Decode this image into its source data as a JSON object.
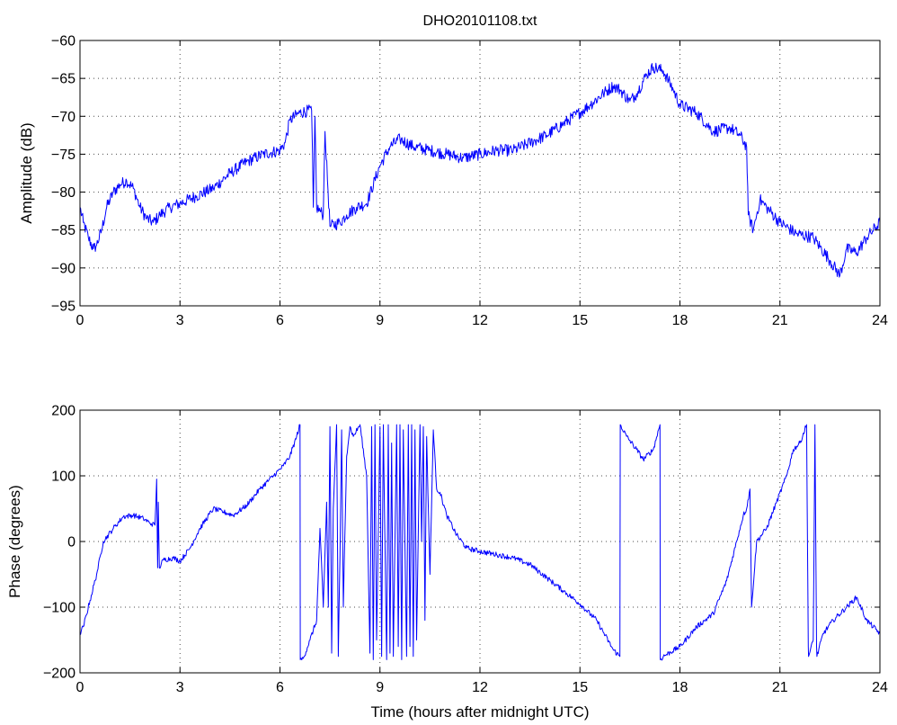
{
  "figure": {
    "title": "DHO20101108.txt"
  },
  "chart_data": [
    {
      "type": "line",
      "title": "DHO20101108.txt",
      "xlabel": "",
      "ylabel": "Amplitude (dB)",
      "xlim": [
        0,
        24
      ],
      "ylim": [
        -95,
        -60
      ],
      "xticks": [
        "0",
        "3",
        "6",
        "9",
        "12",
        "15",
        "18",
        "21",
        "24"
      ],
      "yticks": [
        "-95",
        "-90",
        "-85",
        "-80",
        "-75",
        "-70",
        "-65",
        "-60"
      ],
      "grid": true,
      "color": "#0000ff",
      "noise": 0.8,
      "series": [
        {
          "x": [
            0,
            0.1,
            0.25,
            0.4,
            0.5,
            0.65,
            0.8,
            1.0,
            1.2,
            1.4,
            1.6,
            1.8,
            2.0,
            2.2,
            2.4,
            2.7,
            3.0,
            3.5,
            4.0,
            4.5,
            5.0,
            5.5,
            6.0,
            6.15,
            6.3,
            6.6,
            6.95,
            7.0,
            7.05,
            7.1,
            7.2,
            7.3,
            7.35,
            7.5,
            7.8,
            8.0,
            8.3,
            8.6,
            9.0,
            9.3,
            9.6,
            10.0,
            10.5,
            11.0,
            11.5,
            12.0,
            12.5,
            13.0,
            13.5,
            14.0,
            14.5,
            15.0,
            15.3,
            15.7,
            16.0,
            16.2,
            16.5,
            16.7,
            17.0,
            17.2,
            17.5,
            17.8,
            18.0,
            18.5,
            19.0,
            19.5,
            19.8,
            20.0,
            20.05,
            20.2,
            20.4,
            20.6,
            21.0,
            21.5,
            22.0,
            22.5,
            22.8,
            23.0,
            23.3,
            23.6,
            24.0
          ],
          "values": [
            -82,
            -84,
            -86,
            -87.5,
            -87,
            -85,
            -82,
            -80,
            -79,
            -78.5,
            -79.5,
            -82,
            -83.5,
            -84,
            -83,
            -82,
            -81.5,
            -80.5,
            -79.5,
            -77.5,
            -76,
            -75,
            -74.5,
            -73.5,
            -70.5,
            -69.5,
            -69.2,
            -82,
            -70,
            -82,
            -82.5,
            -83,
            -72,
            -84.5,
            -84,
            -83,
            -82,
            -81.5,
            -76.5,
            -74,
            -73,
            -74,
            -74.5,
            -75,
            -75.5,
            -75,
            -74.5,
            -74.5,
            -73.5,
            -72.5,
            -71,
            -69.5,
            -68.5,
            -67,
            -66,
            -66.5,
            -68,
            -67,
            -64.5,
            -63.5,
            -64,
            -66.5,
            -68.5,
            -69.5,
            -72,
            -71.5,
            -72.5,
            -74,
            -83,
            -85,
            -81,
            -82,
            -84,
            -85.5,
            -86,
            -89,
            -91,
            -87.5,
            -88,
            -86,
            -84
          ]
        }
      ]
    },
    {
      "type": "line",
      "title": "",
      "xlabel": "Time (hours after midnight UTC)",
      "ylabel": "Phase (degrees)",
      "xlim": [
        0,
        24
      ],
      "ylim": [
        -200,
        200
      ],
      "xticks": [
        "0",
        "3",
        "6",
        "9",
        "12",
        "15",
        "18",
        "21",
        "24"
      ],
      "yticks": [
        "-200",
        "-100",
        "0",
        "100",
        "200"
      ],
      "grid": true,
      "color": "#0000ff",
      "noise": 4,
      "series": [
        {
          "x": [
            0,
            0.1,
            0.3,
            0.5,
            0.7,
            1.0,
            1.3,
            1.6,
            1.9,
            2.1,
            2.25,
            2.3,
            2.33,
            2.35,
            2.38,
            2.5,
            2.8,
            3.0,
            3.3,
            3.6,
            4.0,
            4.3,
            4.6,
            5.0,
            5.4,
            5.8,
            6.1,
            6.3,
            6.5,
            6.6,
            6.61,
            6.7,
            6.9,
            7.1,
            7.2,
            7.3,
            7.4,
            7.45,
            7.5,
            7.55,
            7.6,
            7.7,
            7.75,
            7.8,
            7.85,
            7.9,
            8.0,
            8.1,
            8.2,
            8.4,
            8.6,
            8.7,
            8.75,
            8.8,
            8.85,
            8.9,
            9.0,
            9.05,
            9.1,
            9.2,
            9.25,
            9.3,
            9.35,
            9.4,
            9.5,
            9.55,
            9.6,
            9.65,
            9.7,
            9.8,
            9.85,
            9.9,
            9.95,
            10.0,
            10.05,
            10.1,
            10.2,
            10.25,
            10.3,
            10.35,
            10.4,
            10.5,
            10.6,
            10.7,
            10.8,
            11.0,
            11.3,
            11.6,
            12.0,
            12.5,
            13.0,
            13.5,
            14.0,
            14.5,
            15.0,
            15.5,
            16.0,
            16.2,
            16.21,
            16.4,
            16.7,
            16.9,
            17.2,
            17.4,
            17.41,
            17.5,
            18.0,
            18.5,
            19.0,
            19.4,
            19.7,
            19.9,
            20.0,
            20.1,
            20.15,
            20.3,
            20.6,
            20.9,
            21.2,
            21.4,
            21.6,
            21.8,
            21.85,
            21.86,
            22.0,
            22.05,
            22.1,
            22.11,
            22.3,
            22.6,
            23.0,
            23.3,
            23.6,
            24.0
          ],
          "values": [
            -140,
            -130,
            -90,
            -50,
            0,
            20,
            38,
            40,
            35,
            28,
            25,
            95,
            -40,
            60,
            -40,
            -28,
            -25,
            -30,
            -10,
            20,
            50,
            45,
            40,
            55,
            80,
            100,
            115,
            130,
            160,
            178,
            -180,
            -178,
            -150,
            -120,
            20,
            -100,
            60,
            -100,
            175,
            -170,
            50,
            178,
            -175,
            -20,
            170,
            -100,
            130,
            175,
            160,
            178,
            100,
            -170,
            175,
            -180,
            178,
            -150,
            175,
            -175,
            178,
            -180,
            178,
            -170,
            150,
            -175,
            178,
            -160,
            178,
            -180,
            170,
            -175,
            178,
            -160,
            178,
            -175,
            170,
            -150,
            178,
            0,
            175,
            -120,
            160,
            -50,
            170,
            80,
            75,
            40,
            10,
            -10,
            -15,
            -20,
            -25,
            -35,
            -55,
            -75,
            -95,
            -120,
            -165,
            -175,
            178,
            160,
            140,
            125,
            140,
            178,
            -180,
            -175,
            -160,
            -130,
            -110,
            -60,
            0,
            40,
            50,
            80,
            -100,
            0,
            20,
            60,
            100,
            140,
            150,
            178,
            -160,
            -175,
            -150,
            178,
            -160,
            -175,
            -140,
            -120,
            -100,
            -85,
            -120,
            -140
          ]
        }
      ]
    }
  ]
}
